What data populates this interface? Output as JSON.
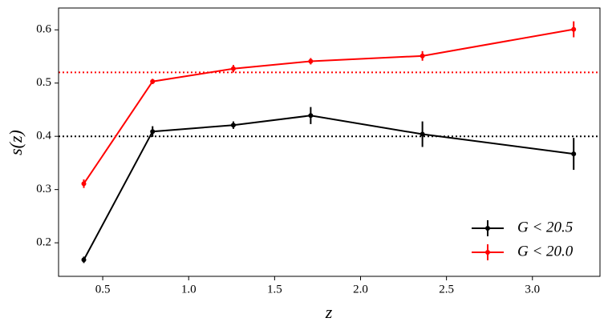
{
  "chart_data": {
    "type": "errorbar-line",
    "xlabel": "z",
    "ylabel": "s(z)",
    "xlim": [
      0.243,
      3.393
    ],
    "ylim": [
      0.137,
      0.641
    ],
    "xticks": [
      0.5,
      {
        "value": 1.0,
        "label": "1.0"
      },
      1.5,
      {
        "value": 2.0,
        "label": "2.0"
      },
      2.5,
      {
        "value": 3.0,
        "label": "3.0"
      }
    ],
    "yticks": [
      0.2,
      0.3,
      0.4,
      0.5,
      0.6
    ],
    "legend": "lower right",
    "series": [
      {
        "name": "G < 20.5",
        "color": "#000000",
        "x": [
          0.39,
          0.79,
          1.26,
          1.71,
          2.36,
          3.24
        ],
        "values": [
          0.168,
          0.409,
          0.421,
          0.439,
          0.404,
          0.367
        ],
        "errors": [
          0.006,
          0.01,
          0.007,
          0.016,
          0.024,
          0.03
        ]
      },
      {
        "name": "G < 20.0",
        "color": "#ff0000",
        "x": [
          0.39,
          0.79,
          1.26,
          1.71,
          2.36,
          3.24
        ],
        "values": [
          0.311,
          0.503,
          0.527,
          0.541,
          0.551,
          0.601
        ],
        "errors": [
          0.008,
          0.005,
          0.007,
          0.006,
          0.009,
          0.015
        ]
      }
    ],
    "hlines": [
      {
        "value": 0.52,
        "color": "#ff0000"
      },
      {
        "value": 0.4,
        "color": "#000000"
      }
    ]
  }
}
